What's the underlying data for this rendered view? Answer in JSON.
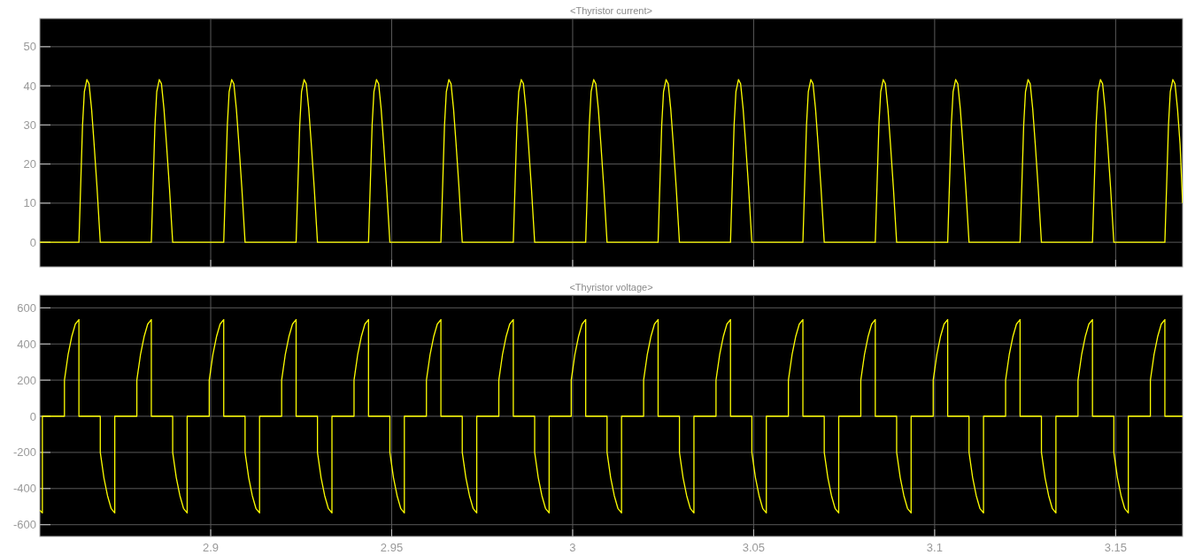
{
  "chart_data": [
    {
      "type": "line",
      "title": "<Thyristor current>",
      "xlim": [
        2.8528,
        3.1685
      ],
      "ylim": [
        -6.3,
        57.2
      ],
      "xticks": [
        2.9,
        2.95,
        3,
        3.05,
        3.1,
        3.15
      ],
      "yticks": [
        0,
        10,
        20,
        30,
        40,
        50
      ],
      "grid": true,
      "tick_labels": "y",
      "series": [
        {
          "color": "#ffff00",
          "x": [
            2.8528,
            2.8636,
            2.8641,
            2.8646,
            2.8651,
            2.8658,
            2.8664,
            2.8671,
            2.8678,
            2.8686,
            2.8695,
            2.8836,
            2.8841,
            2.8846,
            2.8851,
            2.8858,
            2.8864,
            2.8871,
            2.8878,
            2.8886,
            2.8895,
            2.9036,
            2.9041,
            2.9046,
            2.9051,
            2.9058,
            2.9064,
            2.9071,
            2.9078,
            2.9086,
            2.9095,
            2.9236,
            2.9241,
            2.9246,
            2.9251,
            2.9258,
            2.9264,
            2.9271,
            2.9278,
            2.9286,
            2.9295,
            2.9436,
            2.9441,
            2.9446,
            2.9451,
            2.9458,
            2.9464,
            2.9471,
            2.9478,
            2.9486,
            2.9495,
            2.9636,
            2.9641,
            2.9646,
            2.9651,
            2.9658,
            2.9664,
            2.9671,
            2.9678,
            2.9686,
            2.9695,
            2.9836,
            2.9841,
            2.9846,
            2.9851,
            2.9858,
            2.9864,
            2.9871,
            2.9878,
            2.9886,
            2.9895,
            3.0036,
            3.0041,
            3.0046,
            3.0051,
            3.0058,
            3.0064,
            3.0071,
            3.0078,
            3.0086,
            3.0095,
            3.0236,
            3.0241,
            3.0246,
            3.0251,
            3.0258,
            3.0264,
            3.0271,
            3.0278,
            3.0286,
            3.0295,
            3.0436,
            3.0441,
            3.0446,
            3.0451,
            3.0458,
            3.0464,
            3.0471,
            3.0478,
            3.0486,
            3.0495,
            3.0636,
            3.0641,
            3.0646,
            3.0651,
            3.0658,
            3.0664,
            3.0671,
            3.0678,
            3.0686,
            3.0695,
            3.0836,
            3.0841,
            3.0846,
            3.0851,
            3.0858,
            3.0864,
            3.0871,
            3.0878,
            3.0886,
            3.0895,
            3.1036,
            3.1041,
            3.1046,
            3.1051,
            3.1058,
            3.1064,
            3.1071,
            3.1078,
            3.1086,
            3.1095,
            3.1236,
            3.1241,
            3.1246,
            3.1251,
            3.1258,
            3.1264,
            3.1271,
            3.1278,
            3.1286,
            3.1295,
            3.1436,
            3.1441,
            3.1446,
            3.1451,
            3.1458,
            3.1464,
            3.1471,
            3.1478,
            3.1486,
            3.1495,
            3.1636,
            3.1641,
            3.1646,
            3.1651,
            3.1658,
            3.1664,
            3.1671,
            3.1678,
            3.1685
          ],
          "values": [
            0,
            0,
            15,
            30,
            38.5,
            41.6,
            40.5,
            34,
            25,
            14,
            0,
            0,
            15,
            30,
            38.5,
            41.6,
            40.5,
            34,
            25,
            14,
            0,
            0,
            15,
            30,
            38.5,
            41.6,
            40.5,
            34,
            25,
            14,
            0,
            0,
            15,
            30,
            38.5,
            41.6,
            40.5,
            34,
            25,
            14,
            0,
            0,
            15,
            30,
            38.5,
            41.6,
            40.5,
            34,
            25,
            14,
            0,
            0,
            15,
            30,
            38.5,
            41.6,
            40.5,
            34,
            25,
            14,
            0,
            0,
            15,
            30,
            38.5,
            41.6,
            40.5,
            34,
            25,
            14,
            0,
            0,
            15,
            30,
            38.5,
            41.6,
            40.5,
            34,
            25,
            14,
            0,
            0,
            15,
            30,
            38.5,
            41.6,
            40.5,
            34,
            25,
            14,
            0,
            0,
            15,
            30,
            38.5,
            41.6,
            40.5,
            34,
            25,
            14,
            0,
            0,
            15,
            30,
            38.5,
            41.6,
            40.5,
            34,
            25,
            14,
            0,
            0,
            15,
            30,
            38.5,
            41.6,
            40.5,
            34,
            25,
            14,
            0,
            0,
            15,
            30,
            38.5,
            41.6,
            40.5,
            34,
            25,
            14,
            0,
            0,
            15,
            30,
            38.5,
            41.6,
            40.5,
            34,
            25,
            14,
            0,
            0,
            15,
            30,
            38.5,
            41.6,
            40.5,
            34,
            25,
            14,
            0,
            0,
            15,
            30,
            38.5,
            41.6,
            40.5,
            34,
            25,
            10
          ]
        }
      ]
    },
    {
      "type": "line",
      "title": "<Thyristor voltage>",
      "xlim": [
        2.8528,
        3.1685
      ],
      "ylim": [
        -665,
        670
      ],
      "xticks": [
        2.9,
        2.95,
        3,
        3.05,
        3.1,
        3.15
      ],
      "yticks": [
        -600,
        -400,
        -200,
        0,
        200,
        400,
        600
      ],
      "grid": true,
      "series": [
        {
          "color": "#ffff00",
          "x": [
            2.8528,
            2.8535,
            2.8535,
            2.8596,
            2.8596,
            2.8606,
            2.8616,
            2.8626,
            2.8636,
            2.8636,
            2.8695,
            2.8695,
            2.8705,
            2.8715,
            2.8725,
            2.8735,
            2.8735,
            2.8796,
            2.8796,
            2.8806,
            2.8816,
            2.8826,
            2.8836,
            2.8836,
            2.8895,
            2.8895,
            2.8905,
            2.8915,
            2.8925,
            2.8935,
            2.8935,
            2.8996,
            2.8996,
            2.9006,
            2.9016,
            2.9026,
            2.9036,
            2.9036,
            2.9095,
            2.9095,
            2.9105,
            2.9115,
            2.9125,
            2.9135,
            2.9135,
            2.9196,
            2.9196,
            2.9206,
            2.9216,
            2.9226,
            2.9236,
            2.9236,
            2.9295,
            2.9295,
            2.9305,
            2.9315,
            2.9325,
            2.9335,
            2.9335,
            2.9396,
            2.9396,
            2.9406,
            2.9416,
            2.9426,
            2.9436,
            2.9436,
            2.9495,
            2.9495,
            2.9505,
            2.9515,
            2.9525,
            2.9535,
            2.9535,
            2.9596,
            2.9596,
            2.9606,
            2.9616,
            2.9626,
            2.9636,
            2.9636,
            2.9695,
            2.9695,
            2.9705,
            2.9715,
            2.9725,
            2.9735,
            2.9735,
            2.9796,
            2.9796,
            2.9806,
            2.9816,
            2.9826,
            2.9836,
            2.9836,
            2.9895,
            2.9895,
            2.9905,
            2.9915,
            2.9925,
            2.9935,
            2.9935,
            2.9996,
            2.9996,
            3.0006,
            3.0016,
            3.0026,
            3.0036,
            3.0036,
            3.0095,
            3.0095,
            3.0105,
            3.0115,
            3.0125,
            3.0135,
            3.0135,
            3.0196,
            3.0196,
            3.0206,
            3.0216,
            3.0226,
            3.0236,
            3.0236,
            3.0295,
            3.0295,
            3.0305,
            3.0315,
            3.0325,
            3.0335,
            3.0335,
            3.0396,
            3.0396,
            3.0406,
            3.0416,
            3.0426,
            3.0436,
            3.0436,
            3.0495,
            3.0495,
            3.0505,
            3.0515,
            3.0525,
            3.0535,
            3.0535,
            3.0596,
            3.0596,
            3.0606,
            3.0616,
            3.0626,
            3.0636,
            3.0636,
            3.0695,
            3.0695,
            3.0705,
            3.0715,
            3.0725,
            3.0735,
            3.0735,
            3.0796,
            3.0796,
            3.0806,
            3.0816,
            3.0826,
            3.0836,
            3.0836,
            3.0895,
            3.0895,
            3.0905,
            3.0915,
            3.0925,
            3.0935,
            3.0935,
            3.0996,
            3.0996,
            3.1006,
            3.1016,
            3.1026,
            3.1036,
            3.1036,
            3.1095,
            3.1095,
            3.1105,
            3.1115,
            3.1125,
            3.1135,
            3.1135,
            3.1196,
            3.1196,
            3.1206,
            3.1216,
            3.1226,
            3.1236,
            3.1236,
            3.1295,
            3.1295,
            3.1305,
            3.1315,
            3.1325,
            3.1335,
            3.1335,
            3.1396,
            3.1396,
            3.1406,
            3.1416,
            3.1426,
            3.1436,
            3.1436,
            3.1495,
            3.1495,
            3.1505,
            3.1515,
            3.1525,
            3.1535,
            3.1535,
            3.1596,
            3.1596,
            3.1606,
            3.1616,
            3.1626,
            3.1636,
            3.1636,
            3.1685
          ],
          "values": [
            -520,
            -535,
            0,
            0,
            200,
            340,
            440,
            510,
            535,
            0,
            0,
            -200,
            -340,
            -440,
            -510,
            -535,
            0,
            0,
            200,
            340,
            440,
            510,
            535,
            0,
            0,
            -200,
            -340,
            -440,
            -510,
            -535,
            0,
            0,
            200,
            340,
            440,
            510,
            535,
            0,
            0,
            -200,
            -340,
            -440,
            -510,
            -535,
            0,
            0,
            200,
            340,
            440,
            510,
            535,
            0,
            0,
            -200,
            -340,
            -440,
            -510,
            -535,
            0,
            0,
            200,
            340,
            440,
            510,
            535,
            0,
            0,
            -200,
            -340,
            -440,
            -510,
            -535,
            0,
            0,
            200,
            340,
            440,
            510,
            535,
            0,
            0,
            -200,
            -340,
            -440,
            -510,
            -535,
            0,
            0,
            200,
            340,
            440,
            510,
            535,
            0,
            0,
            -200,
            -340,
            -440,
            -510,
            -535,
            0,
            0,
            200,
            340,
            440,
            510,
            535,
            0,
            0,
            -200,
            -340,
            -440,
            -510,
            -535,
            0,
            0,
            200,
            340,
            440,
            510,
            535,
            0,
            0,
            -200,
            -340,
            -440,
            -510,
            -535,
            0,
            0,
            200,
            340,
            440,
            510,
            535,
            0,
            0,
            -200,
            -340,
            -440,
            -510,
            -535,
            0,
            0,
            200,
            340,
            440,
            510,
            535,
            0,
            0,
            -200,
            -340,
            -440,
            -510,
            -535,
            0,
            0,
            200,
            340,
            440,
            510,
            535,
            0,
            0,
            -200,
            -340,
            -440,
            -510,
            -535,
            0,
            0,
            200,
            340,
            440,
            510,
            535,
            0,
            0,
            -200,
            -340,
            -440,
            -510,
            -535,
            0,
            0,
            200,
            340,
            440,
            510,
            535,
            0,
            0,
            -200,
            -340,
            -440,
            -510,
            -535,
            0,
            0,
            200,
            340,
            440,
            510,
            535,
            0,
            0,
            -200,
            -340,
            -440,
            -510,
            -535,
            0,
            0,
            200,
            340,
            440,
            510,
            535,
            0,
            0
          ]
        }
      ]
    }
  ]
}
